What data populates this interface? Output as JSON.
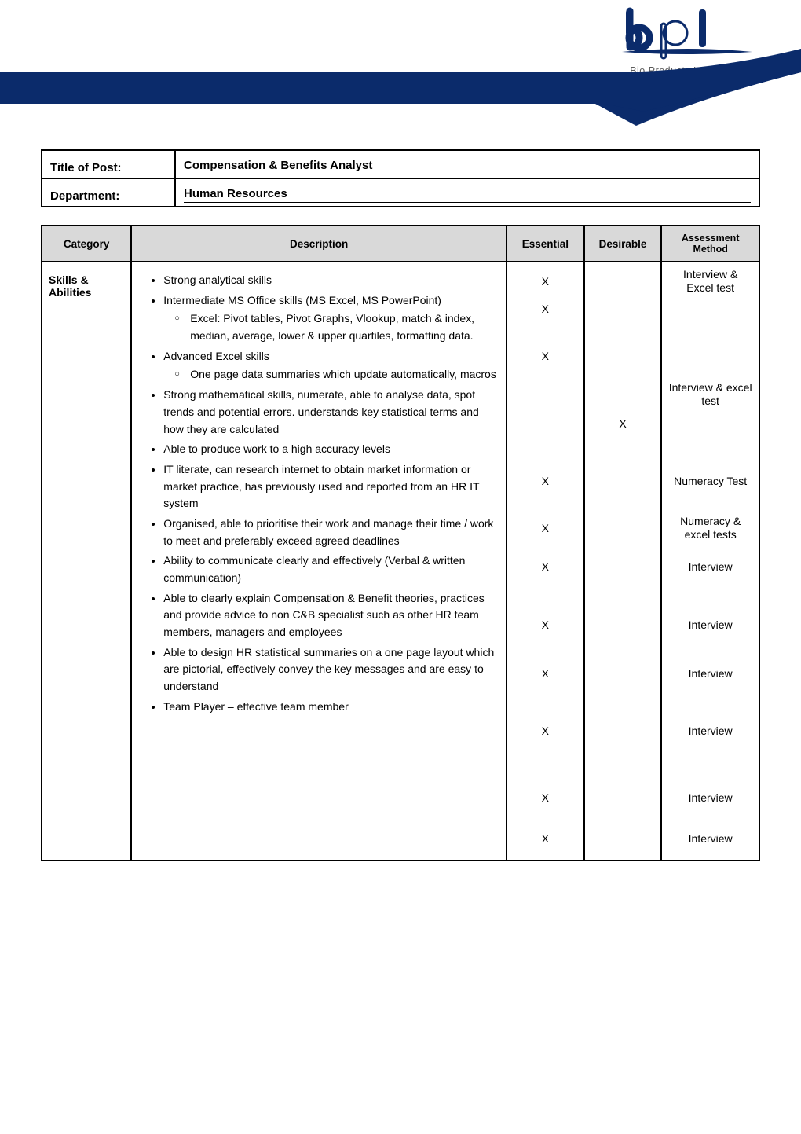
{
  "logo": {
    "letters": "bpl",
    "tagline": "Bio Products Laboratory",
    "primary_color": "#0b2b6b",
    "accent_letter_color": "#0b2b6b"
  },
  "post": {
    "title_label": "Title of Post:",
    "title_value": "Compensation & Benefits Analyst",
    "dept_label": "Department:",
    "dept_value": "Human Resources"
  },
  "columns": {
    "category": "Category",
    "description": "Description",
    "essential": "Essential",
    "desirable": "Desirable",
    "assessment": "Assessment Method"
  },
  "category_label": "Skills & Abilities",
  "items": [
    {
      "text": "Strong analytical skills",
      "essential": "X",
      "desirable": "",
      "assessment": "Interview & Excel test"
    },
    {
      "text": "Intermediate MS Office skills (MS Excel, MS PowerPoint)",
      "essential": "X",
      "desirable": "",
      "assessment": "",
      "sub": [
        {
          "text": "Excel: Pivot tables, Pivot Graphs, Vlookup, match & index, median, average, lower & upper quartiles, formatting data.",
          "essential": "X",
          "desirable": "",
          "assessment": ""
        }
      ]
    },
    {
      "text": "Advanced Excel skills",
      "essential": "",
      "desirable": "",
      "assessment": "Interview & excel test",
      "sub": [
        {
          "text": "One page data summaries which update automatically, macros",
          "essential": "",
          "desirable": "X",
          "assessment": ""
        }
      ]
    },
    {
      "text": "Strong mathematical skills, numerate, able to analyse data, spot trends and potential errors. understands key statistical terms and how they are calculated",
      "essential": "X",
      "desirable": "",
      "assessment": "Numeracy Test"
    },
    {
      "text": "Able to produce work to a high accuracy levels",
      "essential": "X",
      "desirable": "",
      "assessment": "Numeracy & excel tests"
    },
    {
      "text": "IT literate, can research internet to obtain market information or market practice, has previously used and reported from an HR IT system",
      "essential": "X",
      "desirable": "",
      "assessment": "Interview"
    },
    {
      "text": "Organised, able to prioritise their work and manage their time / work to meet and preferably exceed agreed deadlines",
      "essential": "X",
      "desirable": "",
      "assessment": "Interview"
    },
    {
      "text": "Ability to communicate clearly and effectively (Verbal & written communication)",
      "essential": "X",
      "desirable": "",
      "assessment": "Interview"
    },
    {
      "text": "Able to clearly explain Compensation & Benefit theories, practices and provide advice to non C&B specialist such as other HR team members, managers and employees",
      "essential": "X",
      "desirable": "",
      "assessment": "Interview"
    },
    {
      "text": "Able to design HR statistical summaries on a one page layout which are pictorial, effectively convey the key messages and are easy to understand",
      "essential": "X",
      "desirable": "",
      "assessment": "Interview"
    },
    {
      "text": "Team Player – effective team member",
      "essential": "X",
      "desirable": "",
      "assessment": "Interview"
    }
  ],
  "colors": {
    "header_bg": "#d9d9d9",
    "border": "#000000",
    "navy": "#0b2b6b"
  }
}
